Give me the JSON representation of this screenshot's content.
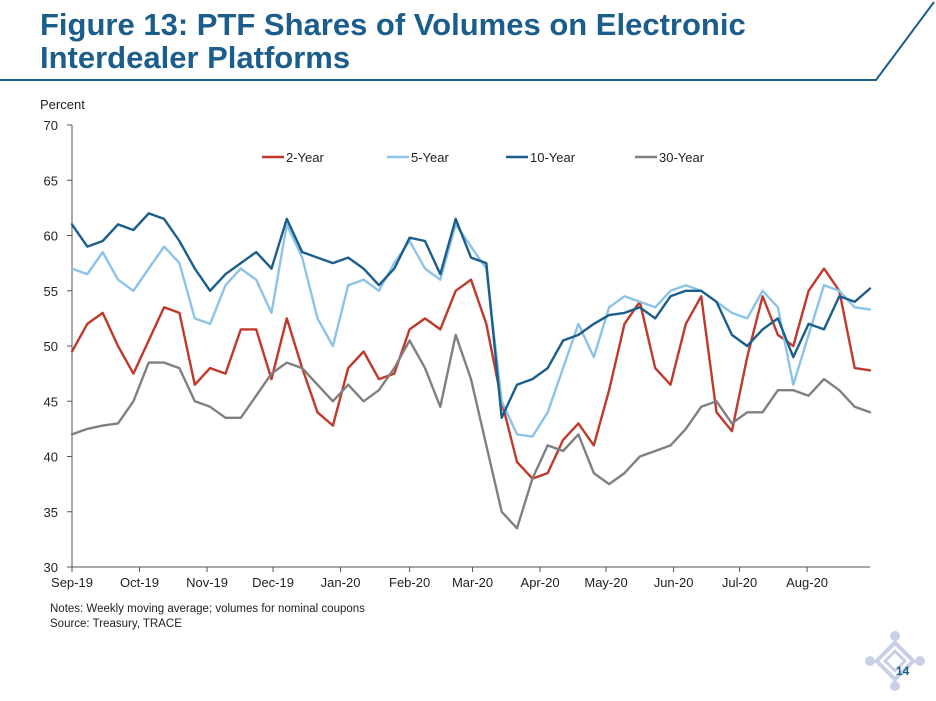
{
  "slide": {
    "title": "Figure 13: PTF Shares of Volumes on Electronic Interdealer Platforms",
    "notes": "Notes: Weekly moving average; volumes for nominal coupons",
    "source": "Source: Treasury, TRACE",
    "page_number": "14"
  },
  "colors": {
    "title": "#1b5e8c",
    "rule": "#1b5e8c",
    "logo": "#c9cfe6"
  },
  "chart_data": {
    "type": "line",
    "title": "",
    "ylabel": "Percent",
    "xlabel": "",
    "ylim": [
      30,
      70
    ],
    "yticks": [
      30,
      35,
      40,
      45,
      50,
      55,
      60,
      65,
      70
    ],
    "x_unit": "week index from first observation",
    "xlim": [
      0,
      52
    ],
    "xticks": [
      {
        "label": "Sep-19",
        "x": 0
      },
      {
        "label": "Oct-19",
        "x": 4.4
      },
      {
        "label": "Nov-19",
        "x": 8.8
      },
      {
        "label": "Dec-19",
        "x": 13.1
      },
      {
        "label": "Jan-20",
        "x": 17.5
      },
      {
        "label": "Feb-20",
        "x": 22.0
      },
      {
        "label": "Mar-20",
        "x": 26.1
      },
      {
        "label": "Apr-20",
        "x": 30.5
      },
      {
        "label": "May-20",
        "x": 34.8
      },
      {
        "label": "Jun-20",
        "x": 39.2
      },
      {
        "label": "Jul-20",
        "x": 43.5
      },
      {
        "label": "Aug-20",
        "x": 47.9
      }
    ],
    "grid": false,
    "legend_position": "top",
    "series": [
      {
        "name": "2-Year",
        "color": "#c0392b",
        "x": [
          0,
          1,
          2,
          3,
          4,
          5,
          6,
          7,
          8,
          9,
          10,
          11,
          12,
          13,
          14,
          15,
          16,
          17,
          18,
          19,
          20,
          21,
          22,
          23,
          24,
          25,
          26,
          27,
          28,
          29,
          30,
          31,
          32,
          33,
          34,
          35,
          36,
          37,
          38,
          39,
          40,
          41,
          42,
          43,
          44,
          45,
          46,
          47,
          48,
          49,
          50,
          51,
          52
        ],
        "values": [
          49.5,
          52.0,
          53.0,
          50.0,
          47.5,
          50.5,
          53.5,
          53.0,
          46.5,
          48.0,
          47.5,
          51.5,
          51.5,
          47.0,
          52.5,
          48.0,
          44.0,
          42.8,
          48.0,
          49.5,
          47.0,
          47.5,
          51.5,
          52.5,
          51.5,
          55.0,
          56.0,
          52.0,
          45.0,
          39.5,
          38.0,
          38.5,
          41.5,
          43.0,
          41.0,
          46.0,
          52.0,
          54.0,
          48.0,
          46.5,
          52.0,
          54.5,
          44.0,
          42.3,
          49.0,
          54.5,
          51.0,
          50.0,
          55.0,
          57.0,
          55.0,
          48.0,
          47.8
        ]
      },
      {
        "name": "5-Year",
        "color": "#8cc3e8",
        "x": [
          0,
          1,
          2,
          3,
          4,
          5,
          6,
          7,
          8,
          9,
          10,
          11,
          12,
          13,
          14,
          15,
          16,
          17,
          18,
          19,
          20,
          21,
          22,
          23,
          24,
          25,
          26,
          27,
          28,
          29,
          30,
          31,
          32,
          33,
          34,
          35,
          36,
          37,
          38,
          39,
          40,
          41,
          42,
          43,
          44,
          45,
          46,
          47,
          48,
          49,
          50,
          51,
          52
        ],
        "values": [
          57.0,
          56.5,
          58.5,
          56.0,
          55.0,
          57.0,
          59.0,
          57.5,
          52.5,
          52.0,
          55.5,
          57.0,
          56.0,
          53.0,
          61.0,
          58.0,
          52.5,
          50.0,
          55.5,
          56.0,
          55.0,
          57.5,
          59.5,
          57.0,
          56.0,
          61.0,
          59.0,
          57.0,
          45.0,
          42.0,
          41.8,
          44.0,
          48.0,
          52.0,
          49.0,
          53.5,
          54.5,
          54.0,
          53.5,
          55.0,
          55.5,
          55.0,
          54.0,
          53.0,
          52.5,
          55.0,
          53.5,
          46.5,
          51.0,
          55.5,
          55.0,
          53.5,
          53.3
        ]
      },
      {
        "name": "10-Year",
        "color": "#1b5e8c",
        "x": [
          0,
          1,
          2,
          3,
          4,
          5,
          6,
          7,
          8,
          9,
          10,
          11,
          12,
          13,
          14,
          15,
          16,
          17,
          18,
          19,
          20,
          21,
          22,
          23,
          24,
          25,
          26,
          27,
          28,
          29,
          30,
          31,
          32,
          33,
          34,
          35,
          36,
          37,
          38,
          39,
          40,
          41,
          42,
          43,
          44,
          45,
          46,
          47,
          48,
          49,
          50,
          51,
          52
        ],
        "values": [
          61.0,
          59.0,
          59.5,
          61.0,
          60.5,
          62.0,
          61.5,
          59.5,
          57.0,
          55.0,
          56.5,
          57.5,
          58.5,
          57.0,
          61.5,
          58.5,
          58.0,
          57.5,
          58.0,
          57.0,
          55.5,
          57.0,
          59.8,
          59.5,
          56.5,
          61.5,
          58.0,
          57.5,
          43.5,
          46.5,
          47.0,
          48.0,
          50.5,
          51.0,
          52.0,
          52.8,
          53.0,
          53.5,
          52.5,
          54.5,
          55.0,
          55.0,
          54.0,
          51.0,
          50.0,
          51.5,
          52.5,
          49.0,
          52.0,
          51.5,
          54.5,
          54.0,
          55.2
        ]
      },
      {
        "name": "30-Year",
        "color": "#808080",
        "x": [
          0,
          1,
          2,
          3,
          4,
          5,
          6,
          7,
          8,
          9,
          10,
          11,
          12,
          13,
          14,
          15,
          16,
          17,
          18,
          19,
          20,
          21,
          22,
          23,
          24,
          25,
          26,
          27,
          28,
          29,
          30,
          31,
          32,
          33,
          34,
          35,
          36,
          37,
          38,
          39,
          40,
          41,
          42,
          43,
          44,
          45,
          46,
          47,
          48,
          49,
          50,
          51,
          52
        ],
        "values": [
          42.0,
          42.5,
          42.8,
          43.0,
          45.0,
          48.5,
          48.5,
          48.0,
          45.0,
          44.5,
          43.5,
          43.5,
          45.5,
          47.5,
          48.5,
          48.0,
          46.5,
          45.0,
          46.5,
          45.0,
          46.0,
          48.0,
          50.5,
          48.0,
          44.5,
          51.0,
          47.0,
          41.0,
          35.0,
          33.5,
          38.0,
          41.0,
          40.5,
          42.0,
          38.5,
          37.5,
          38.5,
          40.0,
          40.5,
          41.0,
          42.5,
          44.5,
          45.0,
          43.0,
          44.0,
          44.0,
          46.0,
          46.0,
          45.5,
          47.0,
          46.0,
          44.5,
          44.0
        ]
      }
    ]
  }
}
